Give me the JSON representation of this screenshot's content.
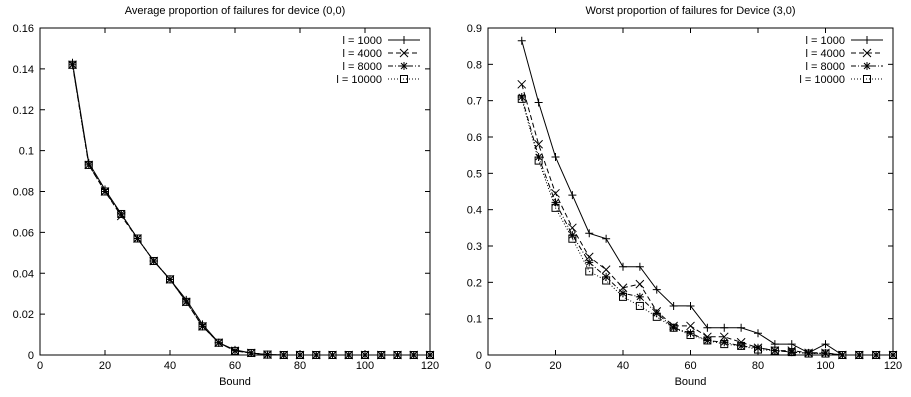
{
  "chart_data": [
    {
      "type": "line",
      "title": "Average proportion of failures for device (0,0)",
      "xlabel": "Bound",
      "ylabel": "",
      "xlim": [
        0,
        120
      ],
      "ylim": [
        0,
        0.16
      ],
      "xticks": [
        0,
        20,
        40,
        60,
        80,
        100,
        120
      ],
      "yticks": [
        0,
        0.02,
        0.04,
        0.06,
        0.08,
        0.1,
        0.12,
        0.14,
        0.16
      ],
      "xtick_labels": [
        "0",
        "20",
        "40",
        "60",
        "80",
        "100",
        "120"
      ],
      "ytick_labels": [
        "0",
        "0.02",
        "0.04",
        "0.06",
        "0.08",
        "0.1",
        "0.12",
        "0.14",
        "0.16"
      ],
      "grid": false,
      "legend_position": "top-right",
      "x": [
        10,
        15,
        20,
        25,
        30,
        35,
        40,
        45,
        50,
        55,
        60,
        65,
        70,
        75,
        80,
        85,
        90,
        95,
        100,
        105,
        110,
        115,
        120
      ],
      "series": [
        {
          "name": "l = 1000",
          "marker": "plus",
          "dash": "solid",
          "values": [
            0.143,
            0.094,
            0.081,
            0.069,
            0.057,
            0.046,
            0.037,
            0.027,
            0.015,
            0.006,
            0.0025,
            0.001,
            0.0002,
            0,
            0,
            0,
            0,
            0,
            0,
            0,
            0,
            0,
            0
          ]
        },
        {
          "name": "l = 4000",
          "marker": "cross",
          "dash": "dashed",
          "values": [
            0.142,
            0.093,
            0.08,
            0.068,
            0.057,
            0.046,
            0.037,
            0.026,
            0.014,
            0.006,
            0.002,
            0.001,
            0.0002,
            0,
            0,
            0,
            0,
            0,
            0,
            0,
            0,
            0,
            0
          ]
        },
        {
          "name": "l = 8000",
          "marker": "star",
          "dash": "dashdot",
          "values": [
            0.142,
            0.093,
            0.08,
            0.069,
            0.057,
            0.046,
            0.037,
            0.026,
            0.014,
            0.006,
            0.002,
            0.001,
            0.0002,
            0,
            0,
            0,
            0,
            0,
            0,
            0,
            0,
            0,
            0
          ]
        },
        {
          "name": "l = 10000",
          "marker": "square",
          "dash": "dotted",
          "values": [
            0.142,
            0.093,
            0.08,
            0.069,
            0.057,
            0.046,
            0.037,
            0.026,
            0.014,
            0.006,
            0.002,
            0.001,
            0.0002,
            0,
            0,
            0,
            0,
            0,
            0,
            0,
            0,
            0,
            0
          ]
        }
      ]
    },
    {
      "type": "line",
      "title": "Worst proportion of failures for Device (3,0)",
      "xlabel": "Bound",
      "ylabel": "",
      "xlim": [
        0,
        120
      ],
      "ylim": [
        0,
        0.9
      ],
      "xticks": [
        0,
        20,
        40,
        60,
        80,
        100,
        120
      ],
      "yticks": [
        0,
        0.1,
        0.2,
        0.3,
        0.4,
        0.5,
        0.6,
        0.7,
        0.8,
        0.9
      ],
      "xtick_labels": [
        "0",
        "20",
        "40",
        "60",
        "80",
        "100",
        "120"
      ],
      "ytick_labels": [
        "0",
        "0.1",
        "0.2",
        "0.3",
        "0.4",
        "0.5",
        "0.6",
        "0.7",
        "0.8",
        "0.9"
      ],
      "grid": false,
      "legend_position": "top-right",
      "x": [
        10,
        15,
        20,
        25,
        30,
        35,
        40,
        45,
        50,
        55,
        60,
        65,
        70,
        75,
        80,
        85,
        90,
        95,
        100,
        105,
        110,
        115,
        120
      ],
      "series": [
        {
          "name": "l = 1000",
          "marker": "plus",
          "dash": "solid",
          "values": [
            0.865,
            0.695,
            0.545,
            0.44,
            0.335,
            0.32,
            0.243,
            0.243,
            0.18,
            0.135,
            0.135,
            0.075,
            0.075,
            0.075,
            0.06,
            0.03,
            0.03,
            0.006,
            0.03,
            0,
            0,
            0,
            0
          ]
        },
        {
          "name": "l = 4000",
          "marker": "cross",
          "dash": "dashed",
          "values": [
            0.745,
            0.58,
            0.445,
            0.35,
            0.27,
            0.235,
            0.185,
            0.195,
            0.12,
            0.08,
            0.08,
            0.05,
            0.05,
            0.035,
            0.02,
            0.012,
            0.012,
            0.006,
            0.006,
            0,
            0,
            0,
            0
          ]
        },
        {
          "name": "l = 8000",
          "marker": "star",
          "dash": "dashdot",
          "values": [
            0.71,
            0.545,
            0.42,
            0.33,
            0.255,
            0.215,
            0.17,
            0.16,
            0.115,
            0.075,
            0.06,
            0.04,
            0.035,
            0.025,
            0.02,
            0.012,
            0.008,
            0.005,
            0.005,
            0,
            0,
            0,
            0
          ]
        },
        {
          "name": "l = 10000",
          "marker": "square",
          "dash": "dotted",
          "values": [
            0.705,
            0.535,
            0.405,
            0.32,
            0.23,
            0.205,
            0.16,
            0.135,
            0.105,
            0.075,
            0.055,
            0.04,
            0.03,
            0.025,
            0.015,
            0.012,
            0.008,
            0.004,
            0.004,
            0,
            0,
            0,
            0
          ]
        }
      ]
    }
  ]
}
